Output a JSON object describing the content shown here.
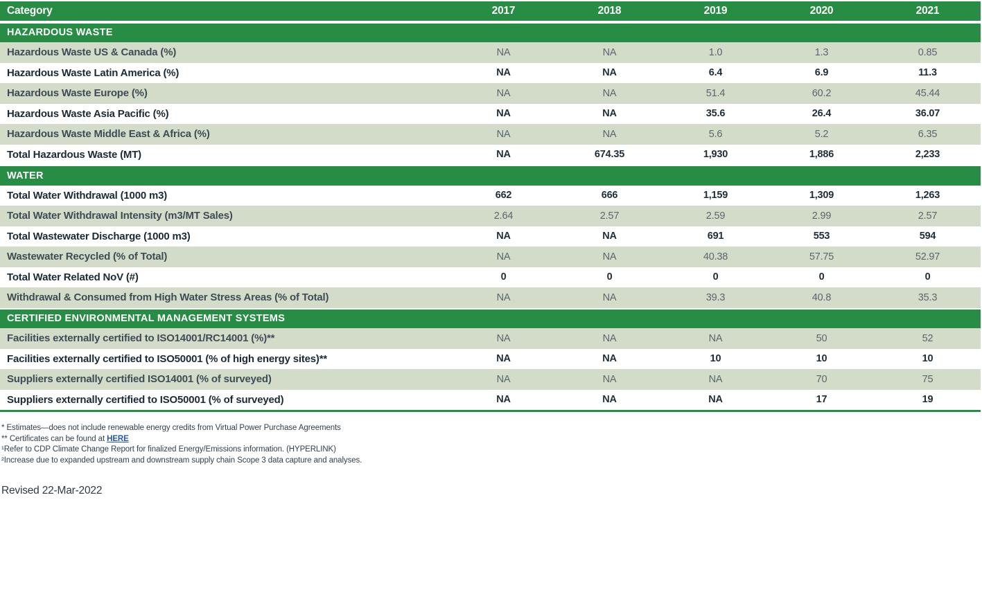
{
  "table": {
    "header": {
      "category": "Category",
      "years": [
        "2017",
        "2018",
        "2019",
        "2020",
        "2021"
      ]
    },
    "sections": [
      {
        "title": "HAZARDOUS WASTE",
        "rows": [
          {
            "label": "Hazardous Waste US & Canada (%)",
            "values": [
              "NA",
              "NA",
              "1.0",
              "1.3",
              "0.85"
            ]
          },
          {
            "label": "Hazardous Waste Latin America (%)",
            "values": [
              "NA",
              "NA",
              "6.4",
              "6.9",
              "11.3"
            ]
          },
          {
            "label": "Hazardous Waste Europe (%)",
            "values": [
              "NA",
              "NA",
              "51.4",
              "60.2",
              "45.44"
            ]
          },
          {
            "label": "Hazardous Waste Asia Pacific (%)",
            "values": [
              "NA",
              "NA",
              "35.6",
              "26.4",
              "36.07"
            ]
          },
          {
            "label": "Hazardous Waste Middle East & Africa (%)",
            "values": [
              "NA",
              "NA",
              "5.6",
              "5.2",
              "6.35"
            ]
          },
          {
            "label": "Total Hazardous Waste (MT)",
            "values": [
              "NA",
              "674.35",
              "1,930",
              "1,886",
              "2,233"
            ]
          }
        ]
      },
      {
        "title": "WATER",
        "rows": [
          {
            "label": "Total Water Withdrawal (1000 m3)",
            "values": [
              "662",
              "666",
              "1,159",
              "1,309",
              "1,263"
            ]
          },
          {
            "label": "Total Water Withdrawal Intensity (m3/MT Sales)",
            "values": [
              "2.64",
              "2.57",
              "2.59",
              "2.99",
              "2.57"
            ]
          },
          {
            "label": "Total Wastewater Discharge (1000 m3)",
            "values": [
              "NA",
              "NA",
              "691",
              "553",
              "594"
            ]
          },
          {
            "label": "Wastewater Recycled (% of Total)",
            "values": [
              "NA",
              "NA",
              "40.38",
              "57.75",
              "52.97"
            ]
          },
          {
            "label": "Total Water Related NoV (#)",
            "values": [
              "0",
              "0",
              "0",
              "0",
              "0"
            ]
          },
          {
            "label": "Withdrawal & Consumed from High Water Stress Areas (% of Total)",
            "values": [
              "NA",
              "NA",
              "39.3",
              "40.8",
              "35.3"
            ]
          }
        ]
      },
      {
        "title": "CERTIFIED ENVIRONMENTAL MANAGEMENT SYSTEMS",
        "rows": [
          {
            "label": "Facilities externally certified to ISO14001/RC14001 (%)**",
            "values": [
              "NA",
              "NA",
              "NA",
              "50",
              "52"
            ]
          },
          {
            "label": "Facilities externally certified to ISO50001 (% of high energy sites)**",
            "values": [
              "NA",
              "NA",
              "10",
              "10",
              "10"
            ]
          },
          {
            "label": "Suppliers externally certified ISO14001 (% of surveyed)",
            "values": [
              "NA",
              "NA",
              "NA",
              "70",
              "75"
            ]
          },
          {
            "label": "Suppliers externally certified to ISO50001 (% of surveyed)",
            "values": [
              "NA",
              "NA",
              "NA",
              "17",
              "19"
            ]
          }
        ]
      }
    ]
  },
  "footnotes": {
    "line1": "* Estimates—does not include renewable energy credits from Virtual Power Purchase Agreements",
    "line2_prefix": "** Certificates can be found at ",
    "line2_link": "HERE",
    "line3": "¹Refer to CDP Climate Change Report for finalized Energy/Emissions information. (HYPERLINK)",
    "line4": "²Increase due to expanded upstream and downstream supply chain Scope 3 data capture and analyses."
  },
  "revised": "Revised 22-Mar-2022",
  "colors": {
    "header_green": "#278d44",
    "row_shade_green": "#d2dcc9",
    "link_blue": "#2458a6"
  }
}
